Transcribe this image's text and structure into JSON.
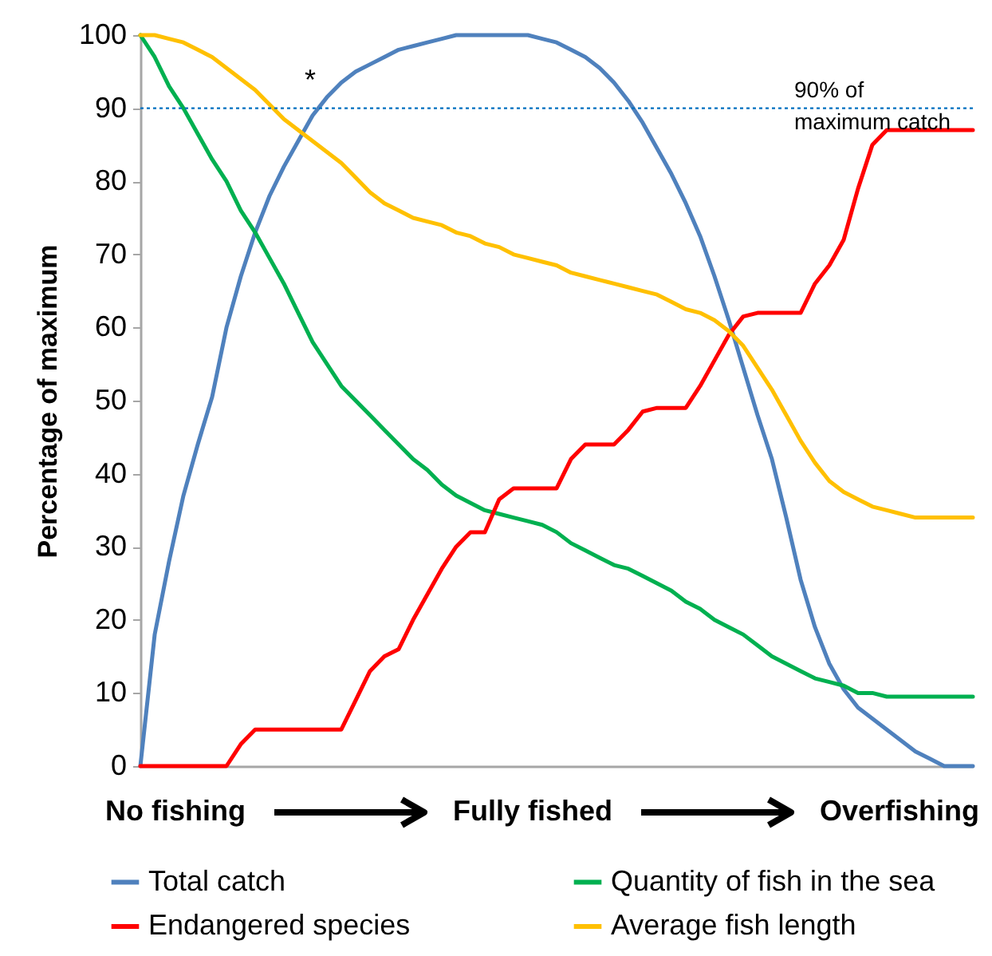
{
  "chart_data": {
    "type": "line",
    "ylabel": "Percentage of maximum",
    "categories": [
      null,
      null,
      null,
      null,
      null,
      null,
      null,
      null,
      null,
      null,
      null,
      null,
      null,
      null,
      null,
      null,
      null,
      null,
      null,
      null,
      null,
      null,
      null,
      null,
      null,
      null,
      null,
      null,
      null,
      null,
      null,
      null,
      null,
      null,
      null,
      null,
      null,
      null,
      null,
      null,
      null,
      null,
      null,
      null,
      null,
      null,
      null,
      null,
      null,
      null,
      null,
      null,
      null,
      null,
      null,
      null,
      null,
      null,
      null
    ],
    "series": [
      {
        "name": "Total catch",
        "color": "#4f81bd",
        "values": [
          0,
          18,
          28,
          37,
          44,
          50.5,
          60,
          67,
          73,
          78,
          82,
          85.5,
          89,
          91.5,
          93.5,
          95,
          96,
          97,
          98,
          98.5,
          99,
          99.5,
          100,
          100,
          100,
          100,
          100,
          100,
          99.5,
          99,
          98,
          97,
          95.5,
          93.5,
          91,
          88,
          84.5,
          81,
          77,
          72.5,
          67,
          61,
          54.5,
          48,
          42,
          34,
          25.5,
          19,
          14,
          10.5,
          8,
          6.5,
          5,
          3.5,
          2,
          1,
          0,
          0,
          0
        ]
      },
      {
        "name": "Quantity of fish in the sea",
        "color": "#00b050",
        "values": [
          100,
          97,
          93,
          90,
          86.5,
          83,
          80,
          76,
          73,
          69.5,
          66,
          62,
          58,
          55,
          52,
          50,
          48,
          46,
          44,
          42,
          40.5,
          38.5,
          37,
          36,
          35,
          34.5,
          34,
          33.5,
          33,
          32,
          30.5,
          29.5,
          28.5,
          27.5,
          27,
          26,
          25,
          24,
          22.5,
          21.5,
          20,
          19,
          18,
          16.5,
          15,
          14,
          13,
          12,
          11.5,
          11,
          10,
          10,
          9.5,
          9.5,
          9.5,
          9.5,
          9.5,
          9.5,
          9.5
        ]
      },
      {
        "name": "Endangered species",
        "color": "#ff0000",
        "values": [
          0,
          0,
          0,
          0,
          0,
          0,
          0,
          3,
          5,
          5,
          5,
          5,
          5,
          5,
          5,
          9,
          13,
          15,
          16,
          20,
          23.5,
          27,
          30,
          32,
          32,
          36.5,
          38,
          38,
          38,
          38,
          42,
          44,
          44,
          44,
          46,
          48.5,
          49,
          49,
          49,
          52,
          55.5,
          59,
          61.5,
          62,
          62,
          62,
          62,
          66,
          68.5,
          72,
          79,
          85,
          87,
          87,
          87,
          87,
          87,
          87,
          87
        ]
      },
      {
        "name": "Average fish length",
        "color": "#ffc000",
        "values": [
          100,
          100,
          99.5,
          99,
          98,
          97,
          95.5,
          94,
          92.5,
          90.5,
          88.5,
          87,
          85.5,
          84,
          82.5,
          80.5,
          78.5,
          77,
          76,
          75,
          74.5,
          74,
          73,
          72.5,
          71.5,
          71,
          70,
          69.5,
          69,
          68.5,
          67.5,
          67,
          66.5,
          66,
          65.5,
          65,
          64.5,
          63.5,
          62.5,
          62,
          61,
          59.5,
          57.5,
          54.5,
          51.5,
          48,
          44.5,
          41.5,
          39,
          37.5,
          36.5,
          35.5,
          35,
          34.5,
          34,
          34,
          34,
          34,
          34
        ]
      }
    ],
    "ylim": [
      0,
      100
    ],
    "yticks": [
      0,
      10,
      20,
      30,
      40,
      50,
      60,
      70,
      80,
      90,
      100
    ],
    "ref_lines": [
      {
        "axis": "y",
        "value": 90,
        "label": "90% of maximum catch",
        "color": "#0070c0",
        "line_style": "dotted"
      }
    ],
    "annotations": [
      "*",
      "No fishing",
      "Fully fished",
      "Overfishing"
    ],
    "legend": "bottom",
    "tick_labels": "y",
    "grid": false
  }
}
